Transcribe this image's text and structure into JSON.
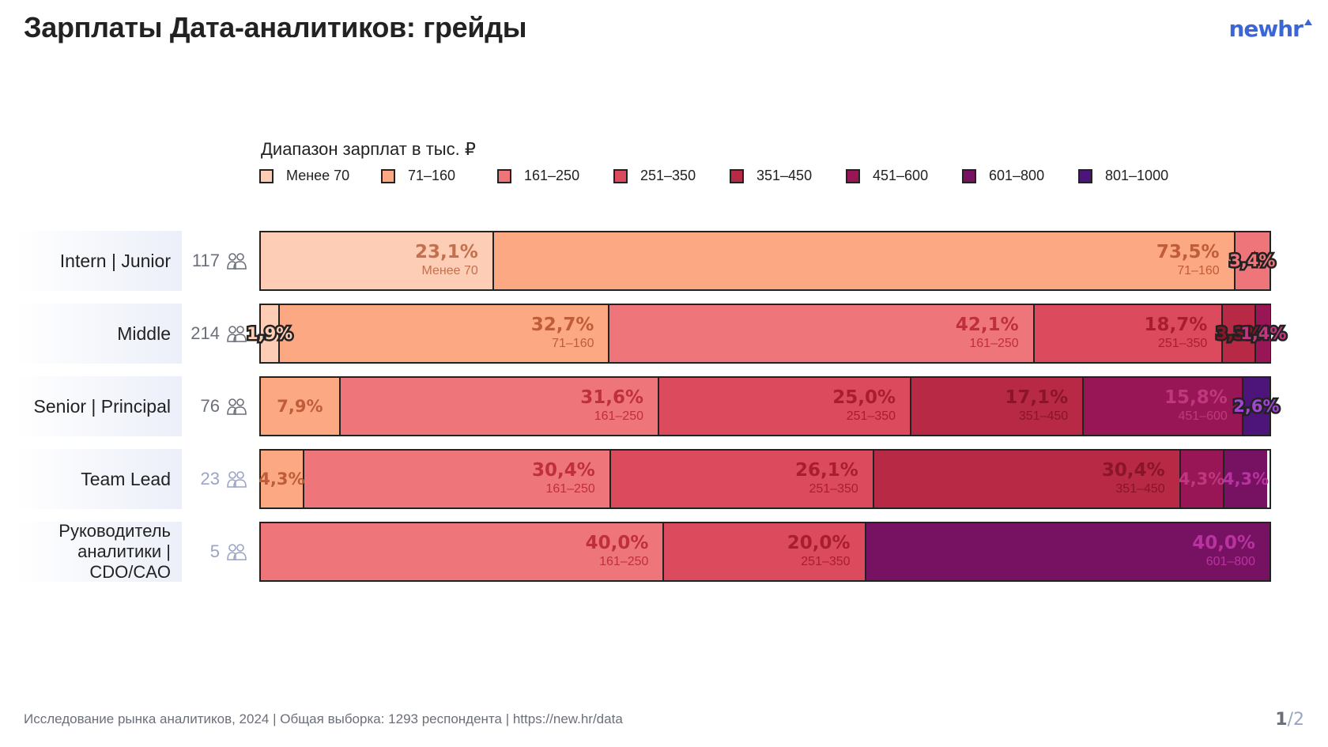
{
  "header": {
    "title": "Зарплаты Дата-аналитиков: грейды",
    "logo": "newhr"
  },
  "footer": {
    "source": "Исследование рынка аналитиков, 2024 | Общая выборка: 1293 респондента | https://new.hr/data",
    "page_current": "1",
    "page_total": "/2"
  },
  "chart_data": {
    "type": "bar",
    "orientation": "horizontal",
    "stacked": true,
    "normalized": true,
    "title": "Зарплаты Дата-аналитиков: грейды",
    "legend_title": "Диапазон зарплат в тыс. ₽",
    "legend_position": "top",
    "series_names": [
      "Менее 70",
      "71–160",
      "161–250",
      "251–350",
      "351–450",
      "451–600",
      "601–800",
      "801–1000"
    ],
    "series_colors": [
      "#fdcdb5",
      "#fba883",
      "#ee767b",
      "#dc4b5d",
      "#b82945",
      "#981655",
      "#761261",
      "#4d1479"
    ],
    "label_colors": [
      "#c4704e",
      "#c05d38",
      "#bf2f3c",
      "#a81e30",
      "#8a1428",
      "#c0377f",
      "#b833a0",
      "#a246d2"
    ],
    "categories": [
      {
        "label": "Intern | Junior",
        "count": "117",
        "count_color": "#6b6f7a",
        "values": [
          23.1,
          73.5,
          3.4,
          0,
          0,
          0,
          0,
          0
        ],
        "labels": [
          "23,1%",
          "73,5%",
          "3,4%",
          "",
          "",
          "",
          "",
          ""
        ]
      },
      {
        "label": "Middle",
        "count": "214",
        "count_color": "#6b6f7a",
        "values": [
          1.9,
          32.7,
          42.1,
          18.7,
          3.3,
          1.4,
          0,
          0
        ],
        "labels": [
          "1,9%",
          "32,7%",
          "42,1%",
          "18,7%",
          "3,3%",
          "1,4%",
          "",
          ""
        ]
      },
      {
        "label": "Senior | Principal",
        "count": "76",
        "count_color": "#6b6f7a",
        "values": [
          0,
          7.9,
          31.6,
          25.0,
          17.1,
          15.8,
          0,
          2.6
        ],
        "labels": [
          "",
          "7,9%",
          "31,6%",
          "25,0%",
          "17,1%",
          "15,8%",
          "",
          "2,6%"
        ]
      },
      {
        "label": "Team Lead",
        "count": "23",
        "count_color": "#9aa4c4",
        "values": [
          0,
          4.3,
          30.4,
          26.1,
          30.4,
          4.3,
          4.3,
          0
        ],
        "labels": [
          "",
          "4,3%",
          "30,4%",
          "26,1%",
          "30,4%",
          "4,3%",
          "4,3%",
          ""
        ]
      },
      {
        "label": "Руководитель аналитики | CDO/CAO",
        "count": "5",
        "count_color": "#9aa4c4",
        "values": [
          0,
          0,
          40.0,
          20.0,
          0,
          0,
          40.0,
          0
        ],
        "labels": [
          "",
          "",
          "40,0%",
          "20,0%",
          "",
          "",
          "40,0%",
          ""
        ]
      }
    ],
    "xlim": [
      0,
      100
    ]
  }
}
